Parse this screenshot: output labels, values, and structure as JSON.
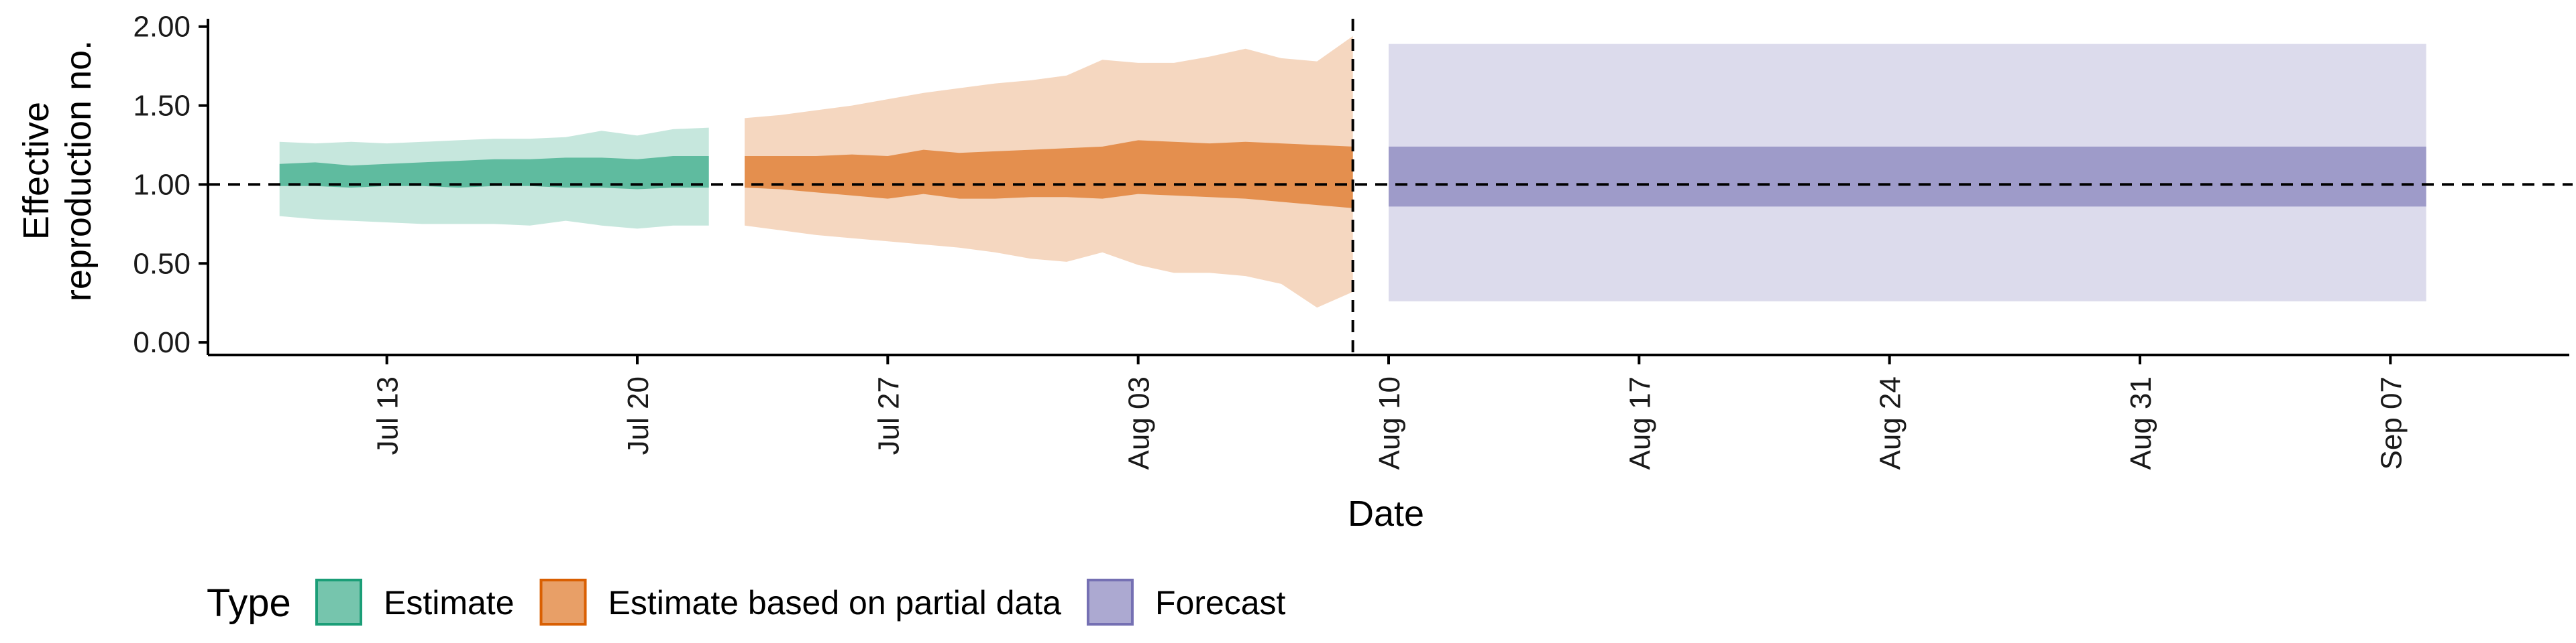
{
  "chart_data": {
    "type": "area",
    "xlabel": "Date",
    "ylabel_lines": [
      "Effective",
      "reproduction no."
    ],
    "yticks": [
      "0.00",
      "0.50",
      "1.00",
      "1.50",
      "2.00"
    ],
    "ylim": [
      -0.08,
      2.02
    ],
    "xlim": [
      "2020-07-08",
      "2020-09-12"
    ],
    "xticks": [
      {
        "date": "2020-07-13",
        "label": "Jul 13"
      },
      {
        "date": "2020-07-20",
        "label": "Jul 20"
      },
      {
        "date": "2020-07-27",
        "label": "Jul 27"
      },
      {
        "date": "2020-08-03",
        "label": "Aug 03"
      },
      {
        "date": "2020-08-10",
        "label": "Aug 10"
      },
      {
        "date": "2020-08-17",
        "label": "Aug 17"
      },
      {
        "date": "2020-08-24",
        "label": "Aug 24"
      },
      {
        "date": "2020-08-31",
        "label": "Aug 31"
      },
      {
        "date": "2020-09-07",
        "label": "Sep 07"
      }
    ],
    "reference_line": {
      "y": 1.0,
      "style": "dashed"
    },
    "vertical_line": {
      "x": "2020-08-09",
      "style": "dashed"
    },
    "grid": false,
    "legend": {
      "title": "Type",
      "position": "bottom-left"
    },
    "series": [
      {
        "name": "Estimate",
        "color": "#1b9e77",
        "x": [
          "2020-07-10",
          "2020-07-11",
          "2020-07-12",
          "2020-07-13",
          "2020-07-14",
          "2020-07-15",
          "2020-07-16",
          "2020-07-17",
          "2020-07-18",
          "2020-07-19",
          "2020-07-20",
          "2020-07-21",
          "2020-07-22"
        ],
        "outer_upper": [
          1.27,
          1.26,
          1.27,
          1.26,
          1.27,
          1.28,
          1.29,
          1.29,
          1.3,
          1.34,
          1.31,
          1.35,
          1.36
        ],
        "outer_lower": [
          0.8,
          0.78,
          0.77,
          0.76,
          0.75,
          0.75,
          0.75,
          0.74,
          0.77,
          0.74,
          0.72,
          0.74,
          0.74
        ],
        "inner_upper": [
          1.13,
          1.14,
          1.12,
          1.13,
          1.14,
          1.15,
          1.16,
          1.16,
          1.17,
          1.17,
          1.16,
          1.18,
          1.18
        ],
        "inner_lower": [
          0.99,
          0.99,
          0.98,
          0.99,
          0.99,
          0.98,
          0.99,
          0.99,
          0.98,
          0.98,
          0.97,
          0.98,
          0.98
        ]
      },
      {
        "name": "Estimate based on partial data",
        "color": "#d95f02",
        "x": [
          "2020-07-23",
          "2020-07-24",
          "2020-07-25",
          "2020-07-26",
          "2020-07-27",
          "2020-07-28",
          "2020-07-29",
          "2020-07-30",
          "2020-07-31",
          "2020-08-01",
          "2020-08-02",
          "2020-08-03",
          "2020-08-04",
          "2020-08-05",
          "2020-08-06",
          "2020-08-07",
          "2020-08-08",
          "2020-08-09"
        ],
        "outer_upper": [
          1.42,
          1.44,
          1.47,
          1.5,
          1.54,
          1.58,
          1.61,
          1.64,
          1.66,
          1.69,
          1.79,
          1.77,
          1.77,
          1.81,
          1.86,
          1.8,
          1.78,
          1.94
        ],
        "outer_lower": [
          0.74,
          0.71,
          0.68,
          0.66,
          0.64,
          0.62,
          0.6,
          0.57,
          0.53,
          0.51,
          0.57,
          0.49,
          0.44,
          0.44,
          0.42,
          0.37,
          0.22,
          0.32
        ],
        "inner_upper": [
          1.18,
          1.18,
          1.18,
          1.19,
          1.18,
          1.22,
          1.2,
          1.21,
          1.22,
          1.23,
          1.24,
          1.28,
          1.27,
          1.26,
          1.27,
          1.26,
          1.25,
          1.24
        ],
        "inner_lower": [
          0.98,
          0.97,
          0.95,
          0.93,
          0.91,
          0.94,
          0.91,
          0.91,
          0.92,
          0.92,
          0.91,
          0.94,
          0.93,
          0.92,
          0.91,
          0.89,
          0.87,
          0.85
        ]
      },
      {
        "name": "Forecast",
        "color": "#7570b3",
        "x": [
          "2020-08-10",
          "2020-09-08"
        ],
        "outer_upper": [
          1.89,
          1.89
        ],
        "outer_lower": [
          0.26,
          0.26
        ],
        "inner_upper": [
          1.24,
          1.24
        ],
        "inner_lower": [
          0.86,
          0.86
        ]
      }
    ]
  }
}
